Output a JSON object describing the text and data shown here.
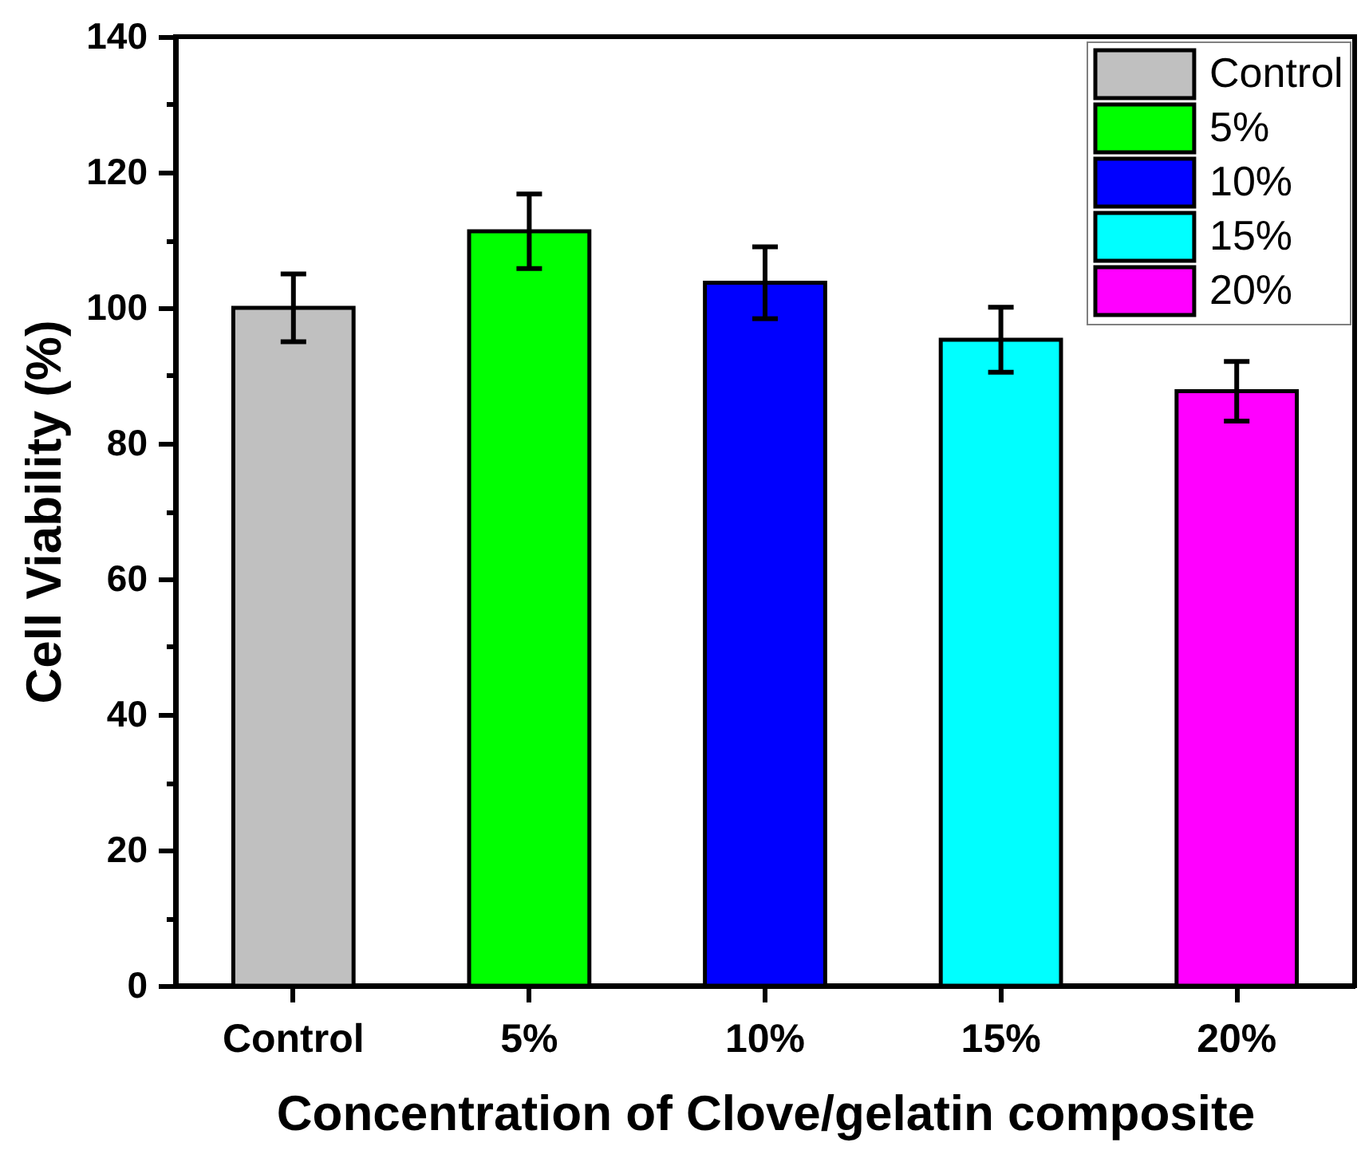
{
  "chart_data": {
    "type": "bar",
    "xlabel": "Concentration of Clove/gelatin composite",
    "ylabel": "Cell Viability (%)",
    "categories": [
      "Control",
      "5%",
      "10%",
      "15%",
      "20%"
    ],
    "series": [
      {
        "name": "Control",
        "color": "#c0c0c0",
        "values": [
          100,
          null,
          null,
          null,
          null
        ],
        "errors": [
          5,
          null,
          null,
          null,
          null
        ]
      },
      {
        "name": "5%",
        "color": "#00ff00",
        "values": [
          null,
          111.3,
          null,
          null,
          null
        ],
        "errors": [
          null,
          5.5,
          null,
          null,
          null
        ]
      },
      {
        "name": "10%",
        "color": "#0000ff",
        "values": [
          null,
          null,
          103.7,
          null,
          null
        ],
        "errors": [
          null,
          null,
          5.3,
          null,
          null
        ]
      },
      {
        "name": "15%",
        "color": "#00ffff",
        "values": [
          null,
          null,
          null,
          95.3,
          null
        ],
        "errors": [
          null,
          null,
          null,
          4.8,
          null
        ]
      },
      {
        "name": "20%",
        "color": "#ff00ff",
        "values": [
          null,
          null,
          null,
          null,
          87.7
        ],
        "errors": [
          null,
          null,
          null,
          null,
          4.4
        ]
      }
    ],
    "stacked": true,
    "ylim": [
      0,
      140
    ],
    "yticks": [
      0,
      {
        "value": 10,
        "label": null
      },
      20,
      {
        "value": 30,
        "label": null
      },
      40,
      {
        "value": 50,
        "label": null
      },
      60,
      {
        "value": 70,
        "label": null
      },
      80,
      {
        "value": 90,
        "label": null
      },
      100,
      {
        "value": 110,
        "label": null
      },
      120,
      {
        "value": 130,
        "label": null
      },
      140
    ],
    "legend": "top right"
  }
}
